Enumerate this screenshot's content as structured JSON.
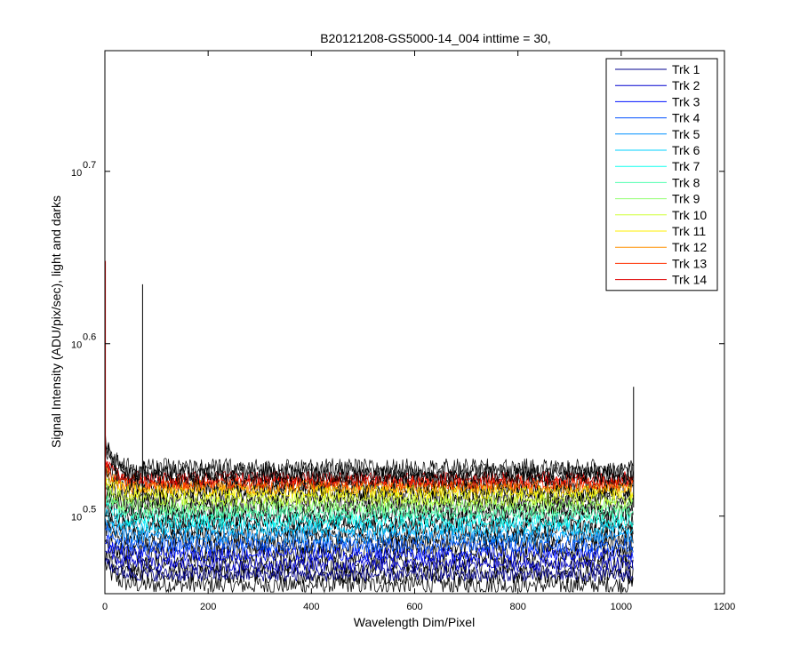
{
  "chart_data": {
    "type": "line",
    "title": "B20121208-GS5000-14_004 inttime = 30,",
    "xlabel": "Wavelength Dim/Pixel",
    "ylabel": "Signal Intensity (ADU/pix/sec), light and darks",
    "xlim": [
      0,
      1200
    ],
    "ylim": [
      0.455,
      0.77
    ],
    "yscale": "log10-exponent",
    "x_ticks": [
      "0",
      "200",
      "400",
      "600",
      "800",
      "1000",
      "1200"
    ],
    "y_ticks": [
      {
        "value": 0.5,
        "base": "10",
        "exp": "0.5"
      },
      {
        "value": 0.6,
        "base": "10",
        "exp": "0.6"
      },
      {
        "value": 0.7,
        "base": "10",
        "exp": "0.7"
      }
    ],
    "grid": false,
    "legend_placement": "top-right",
    "x_range_data": [
      1,
      1024
    ],
    "series": [
      {
        "name": "Trk 1",
        "color": "#00008F",
        "level": 0.466,
        "dark_level": 0.46
      },
      {
        "name": "Trk 2",
        "color": "#0000CF",
        "level": 0.472,
        "dark_level": 0.466
      },
      {
        "name": "Trk 3",
        "color": "#0010FF",
        "level": 0.478,
        "dark_level": 0.472
      },
      {
        "name": "Trk 4",
        "color": "#0050FF",
        "level": 0.483,
        "dark_level": 0.478
      },
      {
        "name": "Trk 5",
        "color": "#0090FF",
        "level": 0.488,
        "dark_level": 0.483
      },
      {
        "name": "Trk 6",
        "color": "#00D0FF",
        "level": 0.493,
        "dark_level": 0.488
      },
      {
        "name": "Trk 7",
        "color": "#10FFEF",
        "level": 0.4975,
        "dark_level": 0.493
      },
      {
        "name": "Trk 8",
        "color": "#50FFAF",
        "level": 0.502,
        "dark_level": 0.4975
      },
      {
        "name": "Trk 9",
        "color": "#90FF6F",
        "level": 0.506,
        "dark_level": 0.502
      },
      {
        "name": "Trk 10",
        "color": "#CFFF30",
        "level": 0.51,
        "dark_level": 0.506
      },
      {
        "name": "Trk 11",
        "color": "#FFEF00",
        "level": 0.514,
        "dark_level": 0.51
      },
      {
        "name": "Trk 12",
        "color": "#FF9000",
        "level": 0.517,
        "dark_level": 0.514
      },
      {
        "name": "Trk 13",
        "color": "#FF3000",
        "level": 0.5195,
        "dark_level": 0.517
      },
      {
        "name": "Trk 14",
        "color": "#DF0000",
        "level": 0.522,
        "dark_level": 0.52
      }
    ],
    "spikes": [
      {
        "x": 1,
        "y": 0.648
      },
      {
        "x": 73,
        "y": 0.6345
      },
      {
        "x": 1024,
        "y": 0.575
      }
    ]
  }
}
